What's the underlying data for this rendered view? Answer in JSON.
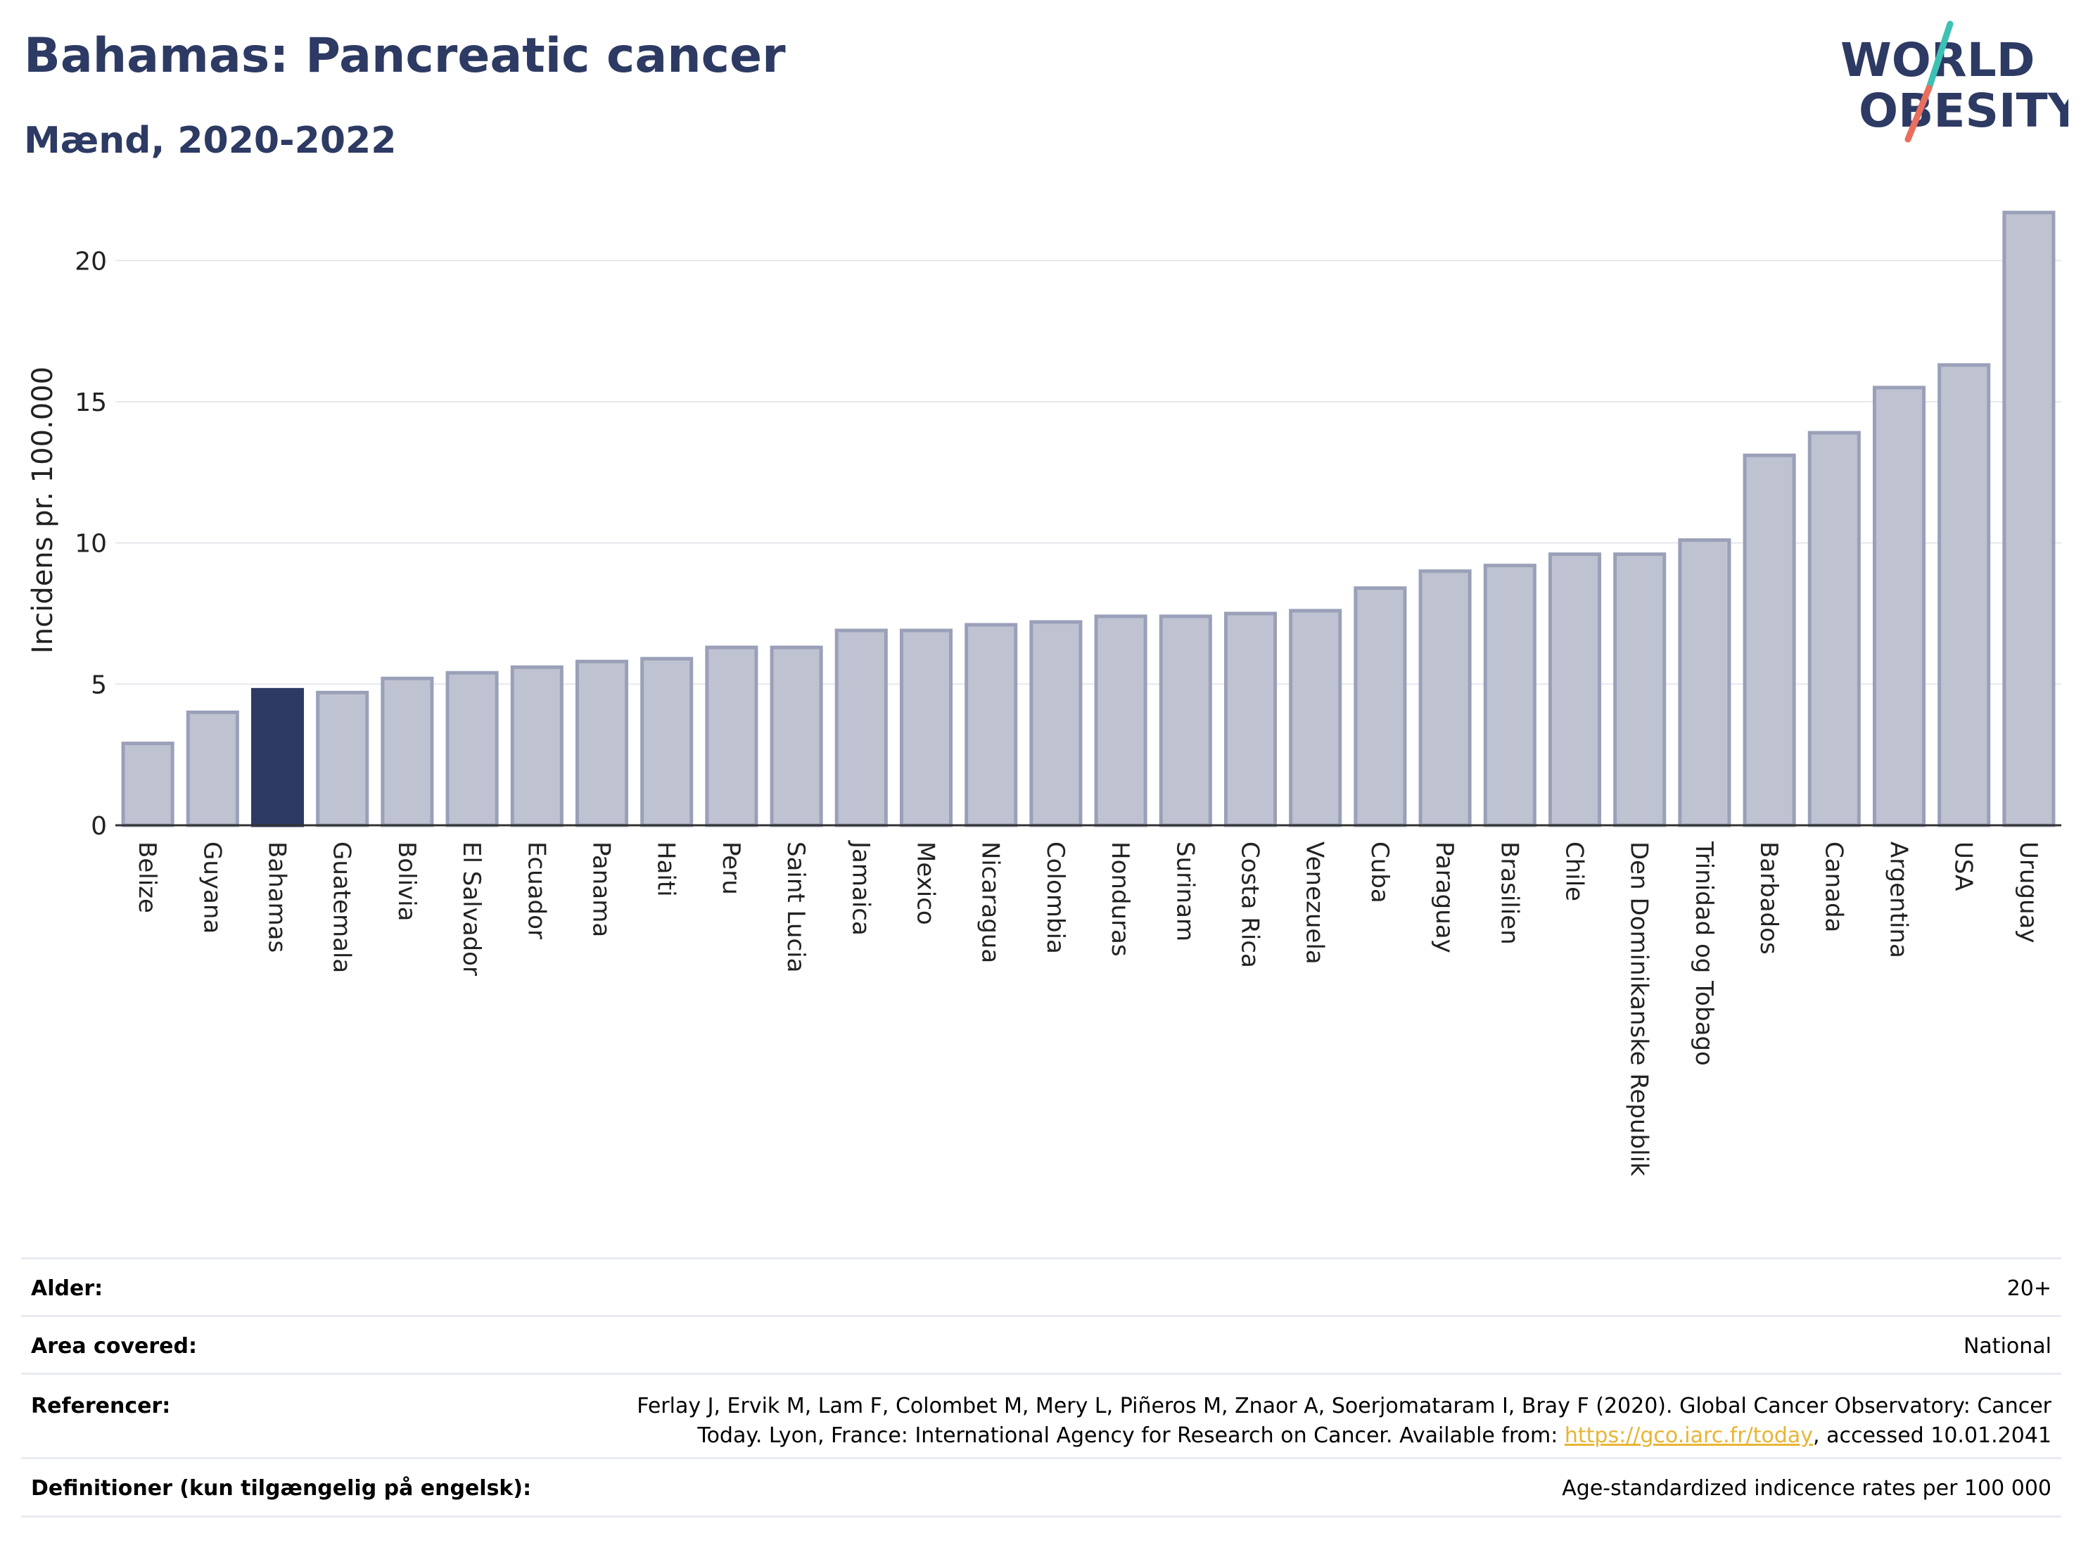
{
  "header": {
    "title": "Bahamas: Pancreatic cancer",
    "subtitle": "Mænd, 2020-2022"
  },
  "logo": {
    "line1": "WORLD",
    "line2": "OBESITY"
  },
  "colors": {
    "bar": "#bfc3d1",
    "bar_stroke": "#9aa0b8",
    "highlight": "#2d3a63",
    "title": "#2d3a63",
    "logo_teal": "#3ec1b5",
    "logo_red": "#e86f5e",
    "link": "#e8b534"
  },
  "chart_data": {
    "type": "bar",
    "ylabel": "Incidens pr. 100.000",
    "xlabel": "",
    "ylim": [
      0,
      22
    ],
    "yticks": [
      0,
      5,
      10,
      15,
      20
    ],
    "grid": true,
    "highlight": "Bahamas",
    "categories": [
      "Belize",
      "Guyana",
      "Bahamas",
      "Guatemala",
      "Bolivia",
      "El Salvador",
      "Ecuador",
      "Panama",
      "Haiti",
      "Peru",
      "Saint Lucia",
      "Jamaica",
      "Mexico",
      "Nicaragua",
      "Colombia",
      "Honduras",
      "Surinam",
      "Costa Rica",
      "Venezuela",
      "Cuba",
      "Paraguay",
      "Brasilien",
      "Chile",
      "Den Dominikanske Republik",
      "Trinidad og Tobago",
      "Barbados",
      "Canada",
      "Argentina",
      "USA",
      "Uruguay"
    ],
    "values": [
      2.9,
      4.0,
      4.8,
      4.7,
      5.2,
      5.4,
      5.6,
      5.8,
      5.9,
      6.3,
      6.3,
      6.9,
      6.9,
      7.1,
      7.2,
      7.4,
      7.4,
      7.5,
      7.6,
      8.4,
      9.0,
      9.2,
      9.6,
      9.6,
      10.1,
      13.1,
      13.9,
      15.5,
      16.3,
      21.7
    ]
  },
  "footer": {
    "age_label": "Alder:",
    "age_value": "20+",
    "area_label": "Area covered:",
    "area_value": "National",
    "ref_label": "Referencer:",
    "ref_line1": "Ferlay J, Ervik M, Lam F, Colombet M, Mery L, Piñeros M, Znaor A, Soerjomataram I, Bray F (2020). Global Cancer Observatory: Cancer",
    "ref_line2_pre": "Today. Lyon, France: International Agency for Research on Cancer. Available from: ",
    "ref_link": "https://gco.iarc.fr/today",
    "ref_line2_post": ", accessed 10.01.2041",
    "def_label": "Definitioner (kun tilgængelig på engelsk):",
    "def_value": "Age-standardized indicence rates per 100 000"
  }
}
